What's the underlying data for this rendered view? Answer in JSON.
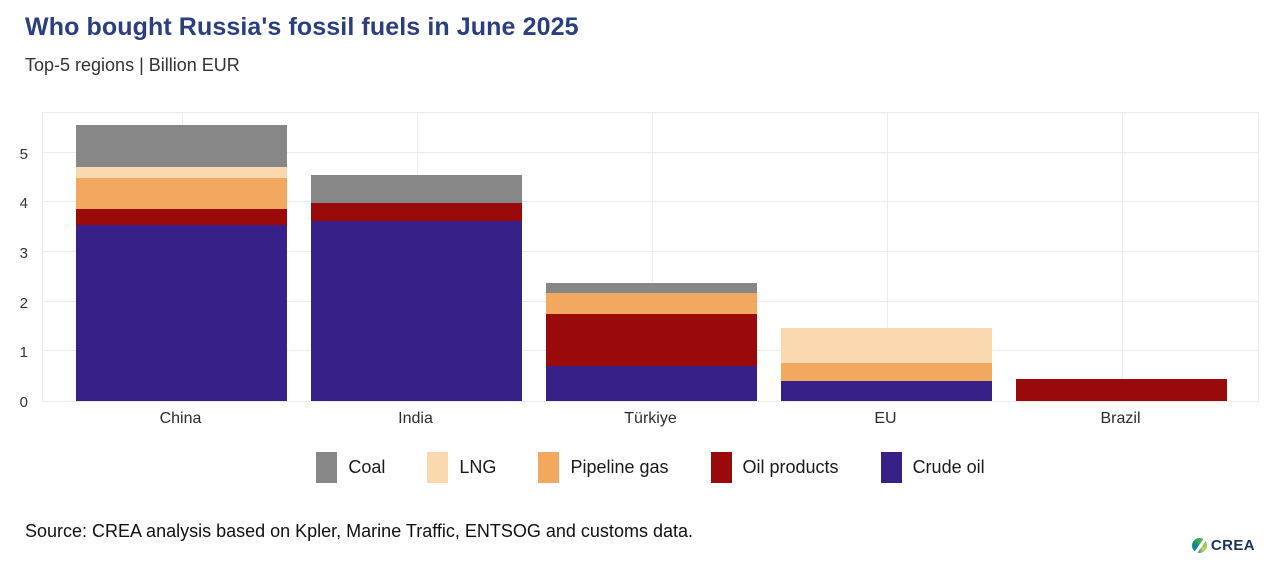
{
  "header": {
    "title": "Who bought Russia's fossil fuels in June 2025",
    "subtitle": "Top-5 regions | Billion EUR"
  },
  "footer": {
    "source": "Source: CREA analysis based on Kpler, Marine Traffic, ENTSOG and customs data.",
    "logo_text": "CREA"
  },
  "colors": {
    "title-color": "#2b3e7e"
  },
  "chart_data": {
    "type": "bar",
    "stacked": true,
    "title": "Who bought Russia's fossil fuels in June 2025",
    "subtitle": "Top-5 regions | Billion EUR",
    "unit": "Billion EUR",
    "categories": [
      "China",
      "India",
      "Türkiye",
      "EU",
      "Brazil"
    ],
    "series": [
      {
        "name": "Crude oil",
        "color": "#372088",
        "values": [
          3.54,
          3.62,
          0.7,
          0.4,
          0.0
        ]
      },
      {
        "name": "Oil products",
        "color": "#9b0a0a",
        "values": [
          0.33,
          0.37,
          1.06,
          0.0,
          0.44
        ]
      },
      {
        "name": "Pipeline gas",
        "color": "#f2a85e",
        "values": [
          0.63,
          0.0,
          0.41,
          0.36,
          0.0
        ]
      },
      {
        "name": "LNG",
        "color": "#fbd9b0",
        "values": [
          0.22,
          0.0,
          0.0,
          0.71,
          0.0
        ]
      },
      {
        "name": "Coal",
        "color": "#878787",
        "values": [
          0.84,
          0.56,
          0.2,
          0.0,
          0.0
        ]
      }
    ],
    "totals": [
      5.56,
      4.55,
      2.37,
      1.47,
      0.44
    ],
    "legend_order": [
      "Coal",
      "LNG",
      "Pipeline gas",
      "Oil products",
      "Crude oil"
    ],
    "legend_position": "bottom",
    "ylabel": "Billion EUR",
    "xlabel": "",
    "ylim": [
      0,
      5.8
    ],
    "yticks": [
      0,
      1,
      2,
      3,
      4,
      5
    ],
    "grid": true
  }
}
